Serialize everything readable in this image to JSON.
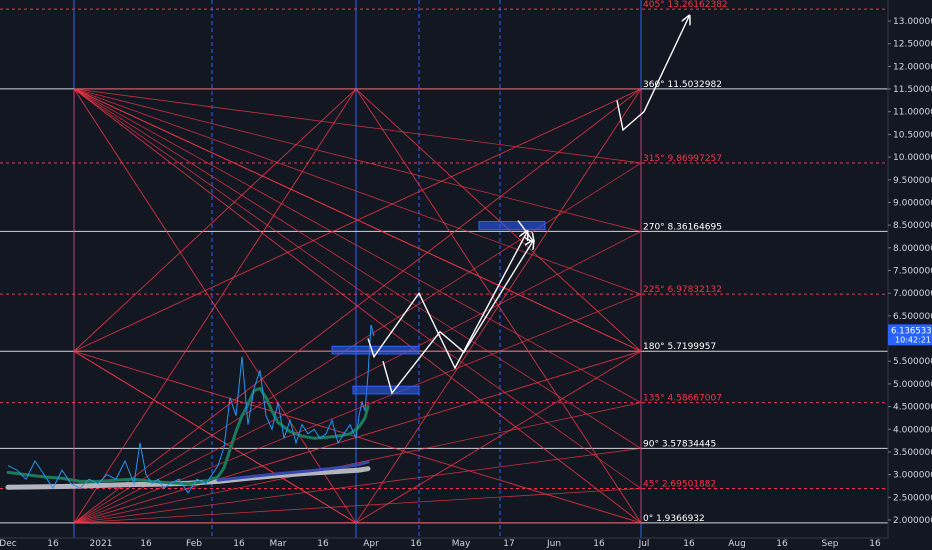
{
  "chart_data": {
    "type": "line",
    "title": "",
    "xlabel": "",
    "ylabel": "",
    "ylim": [
      1.8,
      13.3
    ],
    "y_ticks": [
      "2.0000000",
      "2.5000000",
      "3.0000000",
      "3.5000000",
      "4.0000000",
      "4.5000000",
      "5.0000000",
      "5.5000000",
      "6.0000000",
      "6.5000000",
      "7.0000000",
      "7.5000000",
      "8.0000000",
      "8.5000000",
      "9.0000000",
      "9.5000000",
      "10.0000000",
      "10.5000000",
      "11.0000000",
      "11.5000000",
      "12.0000000",
      "12.5000000",
      "13.0000000"
    ],
    "x_ticks": [
      "Dec",
      "16",
      "2021",
      "16",
      "Feb",
      "16",
      "Mar",
      "16",
      "Apr",
      "16",
      "May",
      "17",
      "Jun",
      "16",
      "Jul",
      "16",
      "Aug",
      "16",
      "Sep",
      "16"
    ],
    "x_tick_days": [
      0,
      15,
      31,
      46,
      62,
      77,
      90,
      105,
      121,
      136,
      151,
      167,
      182,
      197,
      212,
      227,
      243,
      258,
      274,
      289
    ],
    "gann_levels": [
      {
        "degree": "0°",
        "label": "0° 1.9366932",
        "value": 1.9366932,
        "style": "solid"
      },
      {
        "degree": "45°",
        "label": "45° 2.69501882",
        "value": 2.69501882,
        "style": "dashed"
      },
      {
        "degree": "90°",
        "label": "90° 3.57834445",
        "value": 3.57834445,
        "style": "solid"
      },
      {
        "degree": "135°",
        "label": "135° 4.58667007",
        "value": 4.58667007,
        "style": "dashed"
      },
      {
        "degree": "180°",
        "label": "180° 5.7199957",
        "value": 5.7199957,
        "style": "solid"
      },
      {
        "degree": "225°",
        "label": "225° 6.97832132",
        "value": 6.97832132,
        "style": "dashed"
      },
      {
        "degree": "270°",
        "label": "270° 8.36164695",
        "value": 8.36164695,
        "style": "solid"
      },
      {
        "degree": "315°",
        "label": "315° 9.86997257",
        "value": 9.86997257,
        "style": "dashed"
      },
      {
        "degree": "360°",
        "label": "360° 11.5032982",
        "value": 11.5032982,
        "style": "solid"
      },
      {
        "degree": "405°",
        "label": "405° 13.26162382",
        "value": 13.26162382,
        "style": "dashed"
      }
    ],
    "time_cycles": [
      {
        "day": 22,
        "style": "solid"
      },
      {
        "day": 68,
        "style": "dashed"
      },
      {
        "day": 116,
        "style": "solid"
      },
      {
        "day": 137,
        "style": "dashed"
      },
      {
        "day": 164,
        "style": "dashed"
      },
      {
        "day": 211,
        "style": "solid"
      }
    ],
    "square": {
      "x0": 22,
      "x1": 211,
      "xmid": 116,
      "y_low": 1.9366932,
      "y_mid": 5.7199957,
      "y_high": 11.5032982
    },
    "price_series": {
      "name": "",
      "x": [
        0,
        3,
        6,
        9,
        12,
        15,
        18,
        21,
        24,
        27,
        30,
        33,
        36,
        39,
        42,
        44,
        46,
        48,
        50,
        52,
        54,
        57,
        60,
        63,
        66,
        68,
        70,
        72,
        74,
        76,
        78,
        80,
        82,
        84,
        86,
        88,
        90,
        92,
        94,
        96,
        98,
        100,
        102,
        104,
        106,
        108,
        110,
        112,
        114,
        116,
        117,
        118,
        119,
        120,
        121,
        122
      ],
      "y": [
        3.2,
        3.1,
        2.9,
        3.3,
        3.0,
        2.7,
        3.1,
        2.8,
        2.7,
        2.9,
        2.8,
        3.0,
        2.9,
        3.3,
        2.8,
        3.7,
        3.0,
        2.8,
        2.9,
        2.7,
        2.8,
        2.9,
        2.6,
        2.9,
        2.8,
        3.0,
        3.2,
        3.6,
        4.7,
        4.3,
        5.6,
        4.1,
        4.9,
        5.3,
        4.3,
        4.0,
        4.6,
        3.8,
        4.2,
        3.7,
        4.1,
        3.9,
        4.0,
        3.8,
        3.9,
        4.2,
        3.7,
        3.9,
        4.1,
        3.8,
        4.3,
        4.6,
        4.4,
        5.2,
        6.3,
        6.05
      ]
    },
    "ema_series": {
      "name": "",
      "x": [
        0,
        6,
        12,
        18,
        24,
        30,
        36,
        42,
        48,
        54,
        60,
        66,
        70,
        72,
        74,
        76,
        78,
        80,
        82,
        84,
        86,
        88,
        90,
        94,
        98,
        102,
        106,
        110,
        114,
        117,
        119,
        120
      ],
      "y": [
        3.05,
        3.0,
        2.95,
        2.92,
        2.85,
        2.85,
        2.88,
        2.9,
        2.85,
        2.82,
        2.8,
        2.85,
        2.95,
        3.15,
        3.55,
        3.95,
        4.3,
        4.55,
        4.85,
        4.9,
        4.7,
        4.4,
        4.15,
        3.95,
        3.85,
        3.8,
        3.82,
        3.85,
        3.9,
        4.05,
        4.25,
        4.5
      ]
    },
    "ma_series": {
      "name": "",
      "x": [
        0,
        10,
        20,
        30,
        40,
        50,
        60,
        70,
        80,
        90,
        100,
        110,
        117,
        120
      ],
      "y": [
        2.72,
        2.73,
        2.74,
        2.76,
        2.78,
        2.79,
        2.81,
        2.85,
        2.92,
        2.98,
        3.03,
        3.07,
        3.1,
        3.13
      ]
    },
    "ma2_series": {
      "name": "",
      "x": [
        70,
        80,
        90,
        100,
        110,
        117,
        120
      ],
      "y": [
        2.88,
        2.95,
        3.02,
        3.08,
        3.15,
        3.22,
        3.28
      ]
    },
    "boxes": [
      {
        "x0": 108,
        "x1": 137,
        "y0": 5.66,
        "y1": 5.83
      },
      {
        "x0": 115,
        "x1": 137,
        "y0": 4.78,
        "y1": 4.95
      },
      {
        "x0": 157,
        "x1": 179,
        "y0": 8.4,
        "y1": 8.58
      }
    ],
    "projection_paths": [
      [
        [
          120,
          6.0
        ],
        [
          122,
          5.6
        ],
        [
          137,
          7.0
        ],
        [
          149,
          5.35
        ],
        [
          173,
          8.35
        ]
      ],
      [
        [
          125,
          5.5
        ],
        [
          128,
          4.8
        ],
        [
          144,
          6.15
        ],
        [
          152,
          5.7
        ],
        [
          175,
          8.15
        ]
      ],
      [
        [
          170,
          8.6
        ],
        [
          175,
          8.15
        ]
      ],
      [
        [
          203,
          11.25
        ],
        [
          205,
          10.6
        ],
        [
          212,
          11.0
        ],
        [
          227,
          13.1
        ]
      ]
    ],
    "current_price": {
      "value": 6.1365336,
      "label": "6.1365336",
      "countdown": "10:42:21"
    }
  }
}
